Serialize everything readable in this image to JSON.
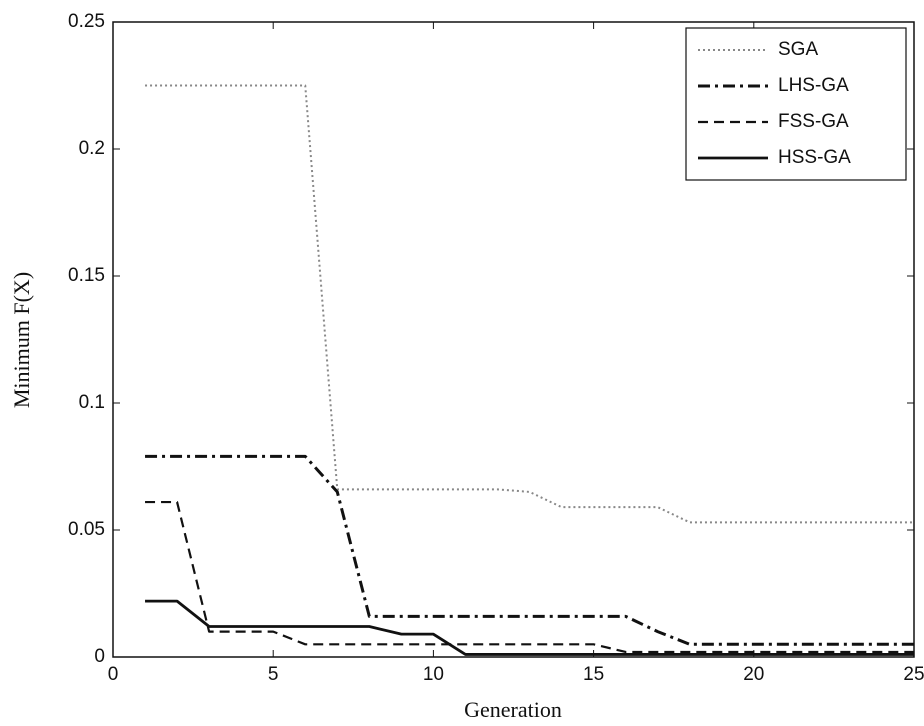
{
  "chart_data": {
    "type": "line",
    "x_label": "Generation",
    "y_label": "Minimum F(X)",
    "x": [
      1,
      2,
      3,
      4,
      5,
      6,
      7,
      8,
      9,
      10,
      11,
      12,
      13,
      14,
      15,
      16,
      17,
      18,
      19,
      20,
      21,
      22,
      23,
      24,
      25
    ],
    "series": [
      {
        "name": "SGA",
        "color": "#888888",
        "linestyle": "dotted",
        "values": [
          0.225,
          0.225,
          0.225,
          0.225,
          0.225,
          0.225,
          0.066,
          0.066,
          0.066,
          0.066,
          0.066,
          0.066,
          0.065,
          0.059,
          0.059,
          0.059,
          0.059,
          0.053,
          0.053,
          0.053,
          0.053,
          0.053,
          0.053,
          0.053,
          0.053
        ]
      },
      {
        "name": "LHS-GA",
        "color": "#111111",
        "linestyle": "dashdot",
        "values": [
          0.079,
          0.079,
          0.079,
          0.079,
          0.079,
          0.079,
          0.065,
          0.016,
          0.016,
          0.016,
          0.016,
          0.016,
          0.016,
          0.016,
          0.016,
          0.016,
          0.01,
          0.005,
          0.005,
          0.005,
          0.005,
          0.005,
          0.005,
          0.005,
          0.005
        ]
      },
      {
        "name": "FSS-GA",
        "color": "#111111",
        "linestyle": "dashed",
        "values": [
          0.061,
          0.061,
          0.01,
          0.01,
          0.01,
          0.005,
          0.005,
          0.005,
          0.005,
          0.005,
          0.005,
          0.005,
          0.005,
          0.005,
          0.005,
          0.002,
          0.002,
          0.002,
          0.002,
          0.002,
          0.002,
          0.002,
          0.002,
          0.002,
          0.002
        ]
      },
      {
        "name": "HSS-GA",
        "color": "#111111",
        "linestyle": "solid",
        "values": [
          0.022,
          0.022,
          0.012,
          0.012,
          0.012,
          0.012,
          0.012,
          0.012,
          0.009,
          0.009,
          0.001,
          0.001,
          0.001,
          0.001,
          0.001,
          0.001,
          0.001,
          0.001,
          0.001,
          0.001,
          0.001,
          0.001,
          0.001,
          0.001,
          0.001
        ]
      }
    ],
    "xlim": [
      0,
      25
    ],
    "xticks": [
      0,
      5,
      10,
      15,
      20,
      25
    ],
    "ylim": [
      0,
      0.25
    ],
    "yticks": [
      0,
      0.05,
      0.1,
      0.15,
      0.2,
      0.25
    ],
    "legend": "upper right"
  }
}
